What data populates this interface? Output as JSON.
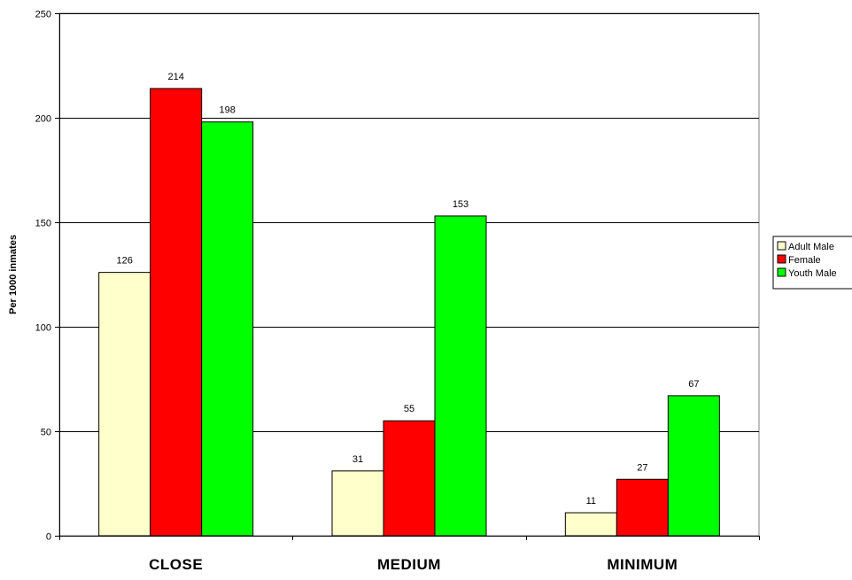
{
  "chart_data": {
    "type": "bar",
    "title": "",
    "xlabel": "",
    "ylabel": "Per 1000 inmates",
    "ylim": [
      0,
      250
    ],
    "yticks": [
      0,
      50,
      100,
      150,
      200,
      250
    ],
    "grid": true,
    "legend_position": "right",
    "categories": [
      "CLOSE",
      "MEDIUM",
      "MINIMUM"
    ],
    "series": [
      {
        "name": "Adult Male",
        "color": "#FFFFCC",
        "values": [
          126,
          31,
          11
        ]
      },
      {
        "name": "Female",
        "color": "#FF0000",
        "values": [
          214,
          55,
          27
        ]
      },
      {
        "name": "Youth Male",
        "color": "#00FF00",
        "values": [
          198,
          153,
          67
        ]
      }
    ]
  }
}
